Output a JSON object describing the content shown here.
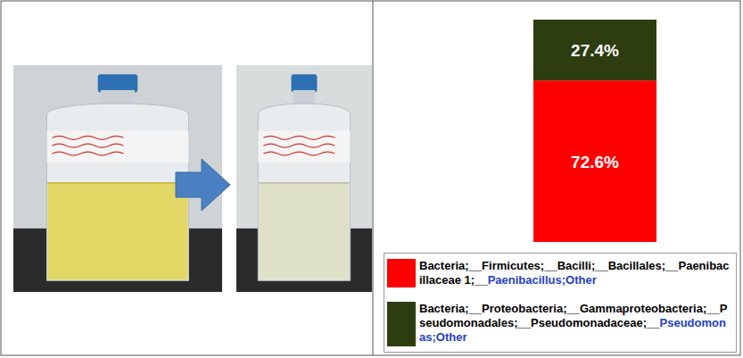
{
  "chart_data": {
    "type": "bar",
    "stacked": true,
    "data_labels": true,
    "tick_labels": false,
    "grid": false,
    "categories": [
      null
    ],
    "ylim": [
      0,
      100
    ],
    "series": [
      {
        "name": "Bacteria;__Firmicutes;__Bacilli;__Bacillales;__Paenibacillaceae 1;__Paenibacillus;Other",
        "color": "#ff0000",
        "values": [
          72.6
        ],
        "value_labels": [
          "72.6%"
        ]
      },
      {
        "name": "Bacteria;__Proteobacteria;__Gammaproteobacteria;__Pseudomonadales;__Pseudomonadaceae;__Pseudomonas;Other",
        "color": "#2e3d0f",
        "values": [
          27.4
        ],
        "value_labels": [
          "27.4%"
        ]
      }
    ]
  }
}
